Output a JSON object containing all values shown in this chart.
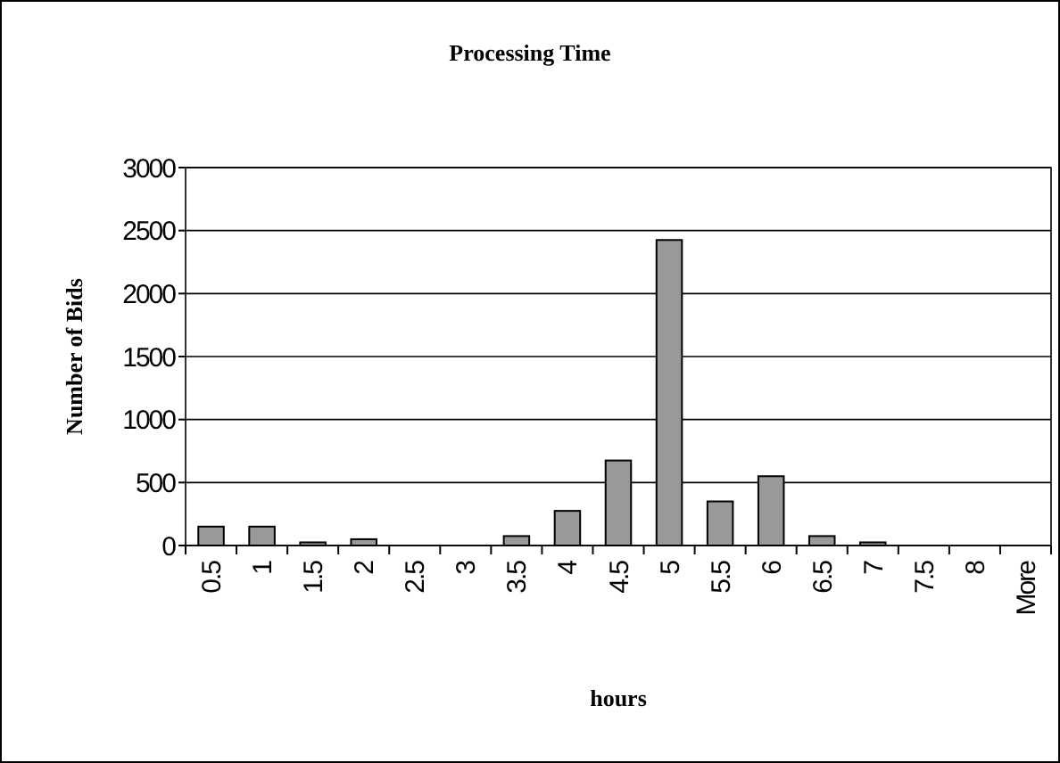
{
  "chart_data": {
    "type": "bar",
    "title": "Processing Time",
    "xlabel": "hours",
    "ylabel": "Number of Bids",
    "categories": [
      "0.5",
      "1",
      "1.5",
      "2",
      "2.5",
      "3",
      "3.5",
      "4",
      "4.5",
      "5",
      "5.5",
      "6",
      "6.5",
      "7",
      "7.5",
      "8",
      "More"
    ],
    "values": [
      150,
      150,
      25,
      50,
      0,
      0,
      75,
      275,
      675,
      2425,
      350,
      550,
      75,
      25,
      0,
      0,
      0
    ],
    "color": "#999999",
    "ylim": [
      0,
      3000
    ],
    "yticks": [
      0,
      500,
      1000,
      1500,
      2000,
      2500,
      3000
    ],
    "grid": "y"
  }
}
